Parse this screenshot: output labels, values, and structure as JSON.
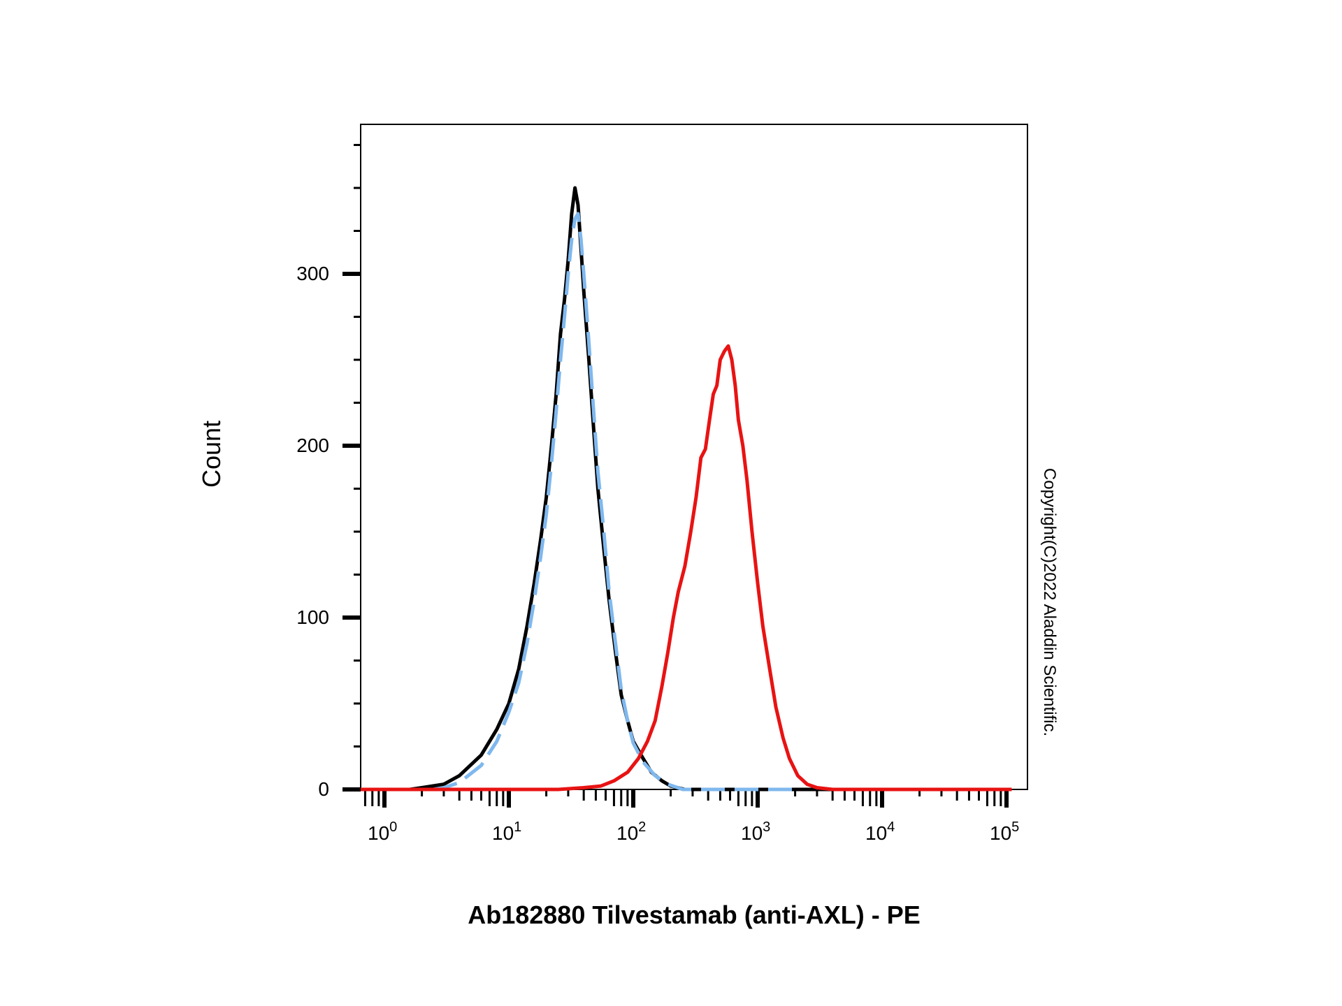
{
  "chart_data": {
    "type": "line",
    "title": "",
    "xlabel": "Ab182880 Tilvestamab (anti-AXL) - PE",
    "ylabel": "Count",
    "x_scale": "log",
    "xlim": [
      0.6,
      110000
    ],
    "ylim": [
      0,
      380
    ],
    "grid": false,
    "legend": "none",
    "x_ticks": [
      {
        "base": "10",
        "exp": "0",
        "value": 1
      },
      {
        "base": "10",
        "exp": "1",
        "value": 10
      },
      {
        "base": "10",
        "exp": "2",
        "value": 100
      },
      {
        "base": "10",
        "exp": "3",
        "value": 1000
      },
      {
        "base": "10",
        "exp": "4",
        "value": 10000
      },
      {
        "base": "10",
        "exp": "5",
        "value": 100000
      }
    ],
    "y_ticks": [
      {
        "label": "0",
        "value": 0
      },
      {
        "label": "100",
        "value": 100
      },
      {
        "label": "200",
        "value": 200
      },
      {
        "label": "300",
        "value": 300
      }
    ],
    "annotation": "Copyright(C)2022 Aladdin Scientific.",
    "series": [
      {
        "color": "#000000",
        "style": "solid",
        "points": [
          [
            1.6,
            0
          ],
          [
            2,
            1
          ],
          [
            3,
            3
          ],
          [
            4,
            8
          ],
          [
            6,
            20
          ],
          [
            8,
            35
          ],
          [
            10,
            50
          ],
          [
            12,
            70
          ],
          [
            14,
            95
          ],
          [
            16,
            120
          ],
          [
            18,
            145
          ],
          [
            20,
            170
          ],
          [
            22,
            200
          ],
          [
            24,
            230
          ],
          [
            26,
            265
          ],
          [
            28,
            285
          ],
          [
            30,
            308
          ],
          [
            32,
            335
          ],
          [
            34,
            350
          ],
          [
            36,
            340
          ],
          [
            38,
            315
          ],
          [
            40,
            290
          ],
          [
            44,
            250
          ],
          [
            48,
            210
          ],
          [
            52,
            175
          ],
          [
            58,
            140
          ],
          [
            64,
            110
          ],
          [
            72,
            80
          ],
          [
            80,
            55
          ],
          [
            90,
            40
          ],
          [
            100,
            28
          ],
          [
            120,
            18
          ],
          [
            140,
            10
          ],
          [
            170,
            5
          ],
          [
            200,
            2
          ],
          [
            260,
            0
          ],
          [
            1000,
            0
          ],
          [
            100000,
            0
          ]
        ]
      },
      {
        "color": "#7fb8ee",
        "style": "dashed",
        "points": [
          [
            2.5,
            0
          ],
          [
            3,
            1
          ],
          [
            4,
            4
          ],
          [
            6,
            14
          ],
          [
            8,
            28
          ],
          [
            10,
            45
          ],
          [
            12,
            62
          ],
          [
            14,
            85
          ],
          [
            16,
            110
          ],
          [
            18,
            135
          ],
          [
            20,
            160
          ],
          [
            22,
            190
          ],
          [
            24,
            220
          ],
          [
            26,
            250
          ],
          [
            28,
            275
          ],
          [
            30,
            300
          ],
          [
            32,
            320
          ],
          [
            34,
            332
          ],
          [
            36,
            335
          ],
          [
            38,
            320
          ],
          [
            40,
            300
          ],
          [
            44,
            260
          ],
          [
            48,
            220
          ],
          [
            52,
            185
          ],
          [
            58,
            150
          ],
          [
            64,
            115
          ],
          [
            72,
            85
          ],
          [
            80,
            58
          ],
          [
            90,
            40
          ],
          [
            100,
            27
          ],
          [
            120,
            16
          ],
          [
            150,
            8
          ],
          [
            190,
            3
          ],
          [
            250,
            0
          ],
          [
            2000,
            0
          ]
        ]
      },
      {
        "color": "#e81313",
        "style": "solid",
        "points": [
          [
            0.6,
            0
          ],
          [
            25,
            0
          ],
          [
            40,
            1
          ],
          [
            55,
            2
          ],
          [
            70,
            5
          ],
          [
            90,
            10
          ],
          [
            110,
            18
          ],
          [
            130,
            28
          ],
          [
            150,
            40
          ],
          [
            170,
            60
          ],
          [
            190,
            80
          ],
          [
            210,
            100
          ],
          [
            230,
            115
          ],
          [
            260,
            130
          ],
          [
            290,
            150
          ],
          [
            320,
            170
          ],
          [
            350,
            193
          ],
          [
            380,
            198
          ],
          [
            410,
            215
          ],
          [
            440,
            230
          ],
          [
            470,
            235
          ],
          [
            500,
            250
          ],
          [
            540,
            255
          ],
          [
            580,
            258
          ],
          [
            620,
            250
          ],
          [
            660,
            235
          ],
          [
            700,
            215
          ],
          [
            760,
            200
          ],
          [
            820,
            180
          ],
          [
            900,
            150
          ],
          [
            1000,
            120
          ],
          [
            1100,
            95
          ],
          [
            1250,
            70
          ],
          [
            1400,
            48
          ],
          [
            1600,
            30
          ],
          [
            1800,
            18
          ],
          [
            2100,
            8
          ],
          [
            2500,
            3
          ],
          [
            3000,
            1
          ],
          [
            4000,
            0
          ],
          [
            110000,
            0
          ]
        ]
      }
    ]
  }
}
